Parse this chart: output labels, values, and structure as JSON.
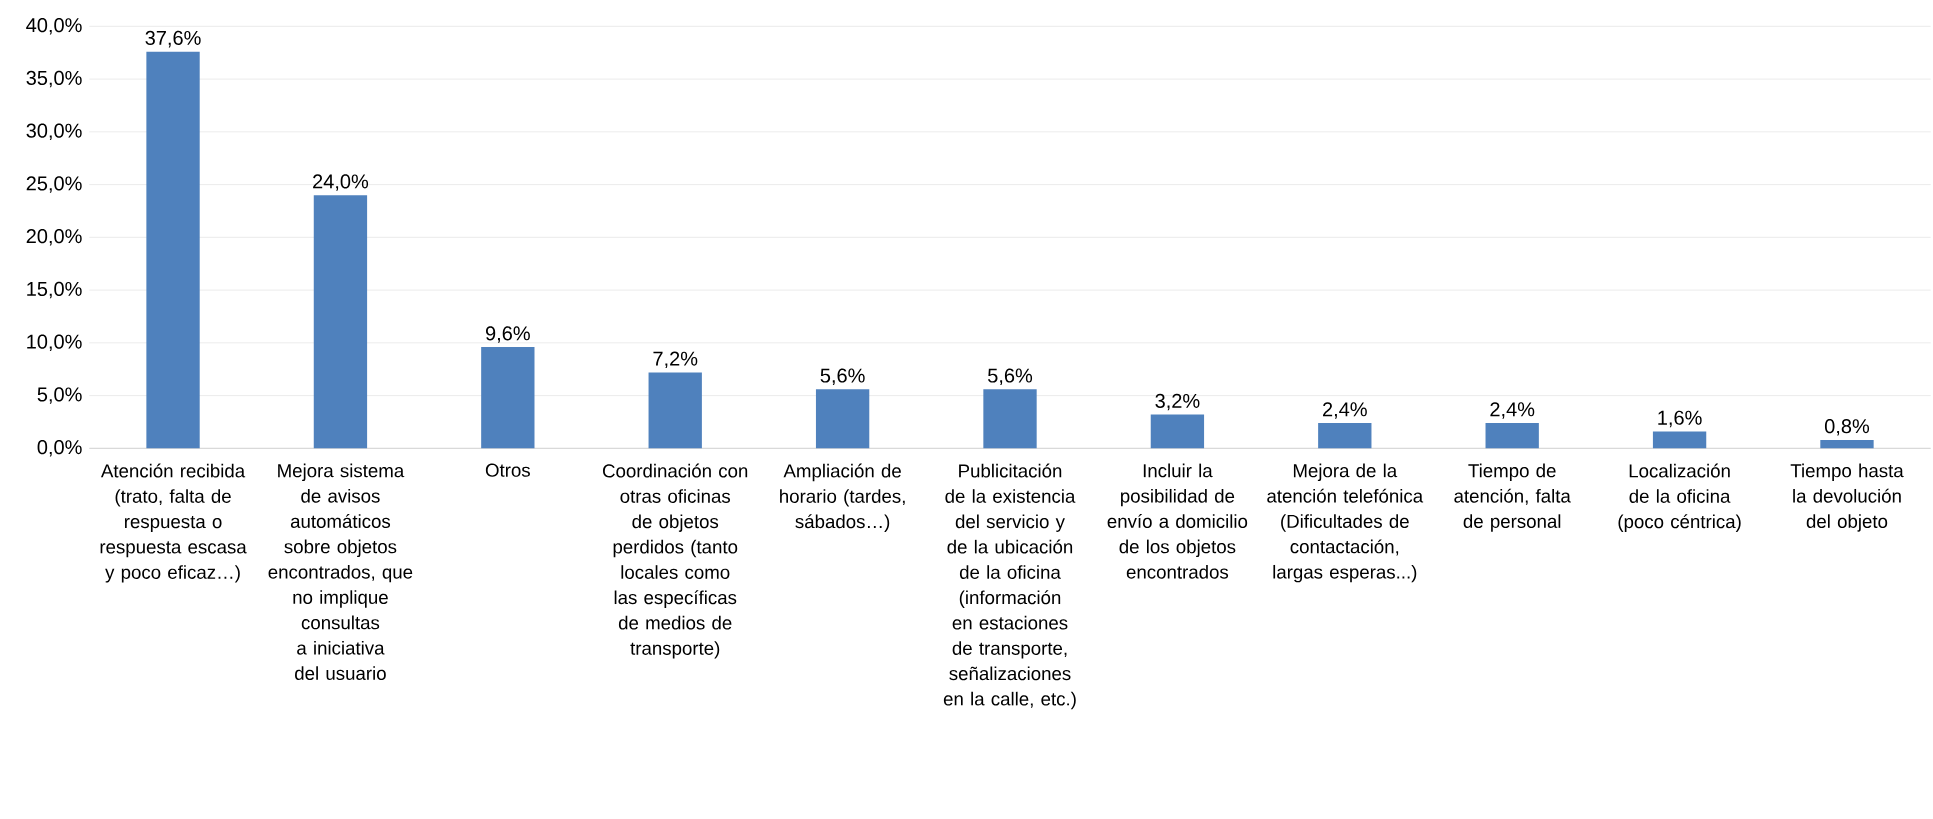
{
  "chart_data": {
    "type": "bar",
    "categories": [
      "Atención recibida (trato, falta de respuesta o respuesta escasa y poco eficaz…)",
      "Mejora sistema de avisos automáticos sobre objetos encontrados, que no implique consultas a iniciativa del usuario",
      "Otros",
      "Coordinación con otras oficinas de objetos perdidos (tanto locales como las específicas de medios de transporte)",
      "Ampliación de horario (tardes, sábados…)",
      "Publicitación de la existencia del servicio y de la ubicación de la oficina (información en estaciones de transporte, señalizaciones en la calle, etc.)",
      "Incluir la posibilidad de envío a domicilio de los objetos encontrados",
      "Mejora de la atención telefónica (Dificultades de contactación, largas esperas...)",
      "Tiempo de atención, falta de personal",
      "Localización de la oficina (poco céntrica)",
      "Tiempo hasta la devolución del objeto"
    ],
    "values": [
      37.6,
      24.0,
      9.6,
      7.2,
      5.6,
      5.6,
      3.2,
      2.4,
      2.4,
      1.6,
      0.8
    ],
    "value_labels": [
      "37,6%",
      "24,0%",
      "9,6%",
      "7,2%",
      "5,6%",
      "5,6%",
      "3,2%",
      "2,4%",
      "2,4%",
      "1,6%",
      "0,8%"
    ],
    "color": "#4f81bd",
    "ylim": [
      0,
      40
    ],
    "yticks": [
      {
        "value": 0,
        "label": "0,0%"
      },
      {
        "value": 5,
        "label": "5,0%"
      },
      {
        "value": 10,
        "label": "10,0%"
      },
      {
        "value": 15,
        "label": "15,0%"
      },
      {
        "value": 20,
        "label": "20,0%"
      },
      {
        "value": 25,
        "label": "25,0%"
      },
      {
        "value": 30,
        "label": "30,0%"
      },
      {
        "value": 35,
        "label": "35,0%"
      },
      {
        "value": 40,
        "label": "40,0%"
      }
    ],
    "grid": "y"
  }
}
